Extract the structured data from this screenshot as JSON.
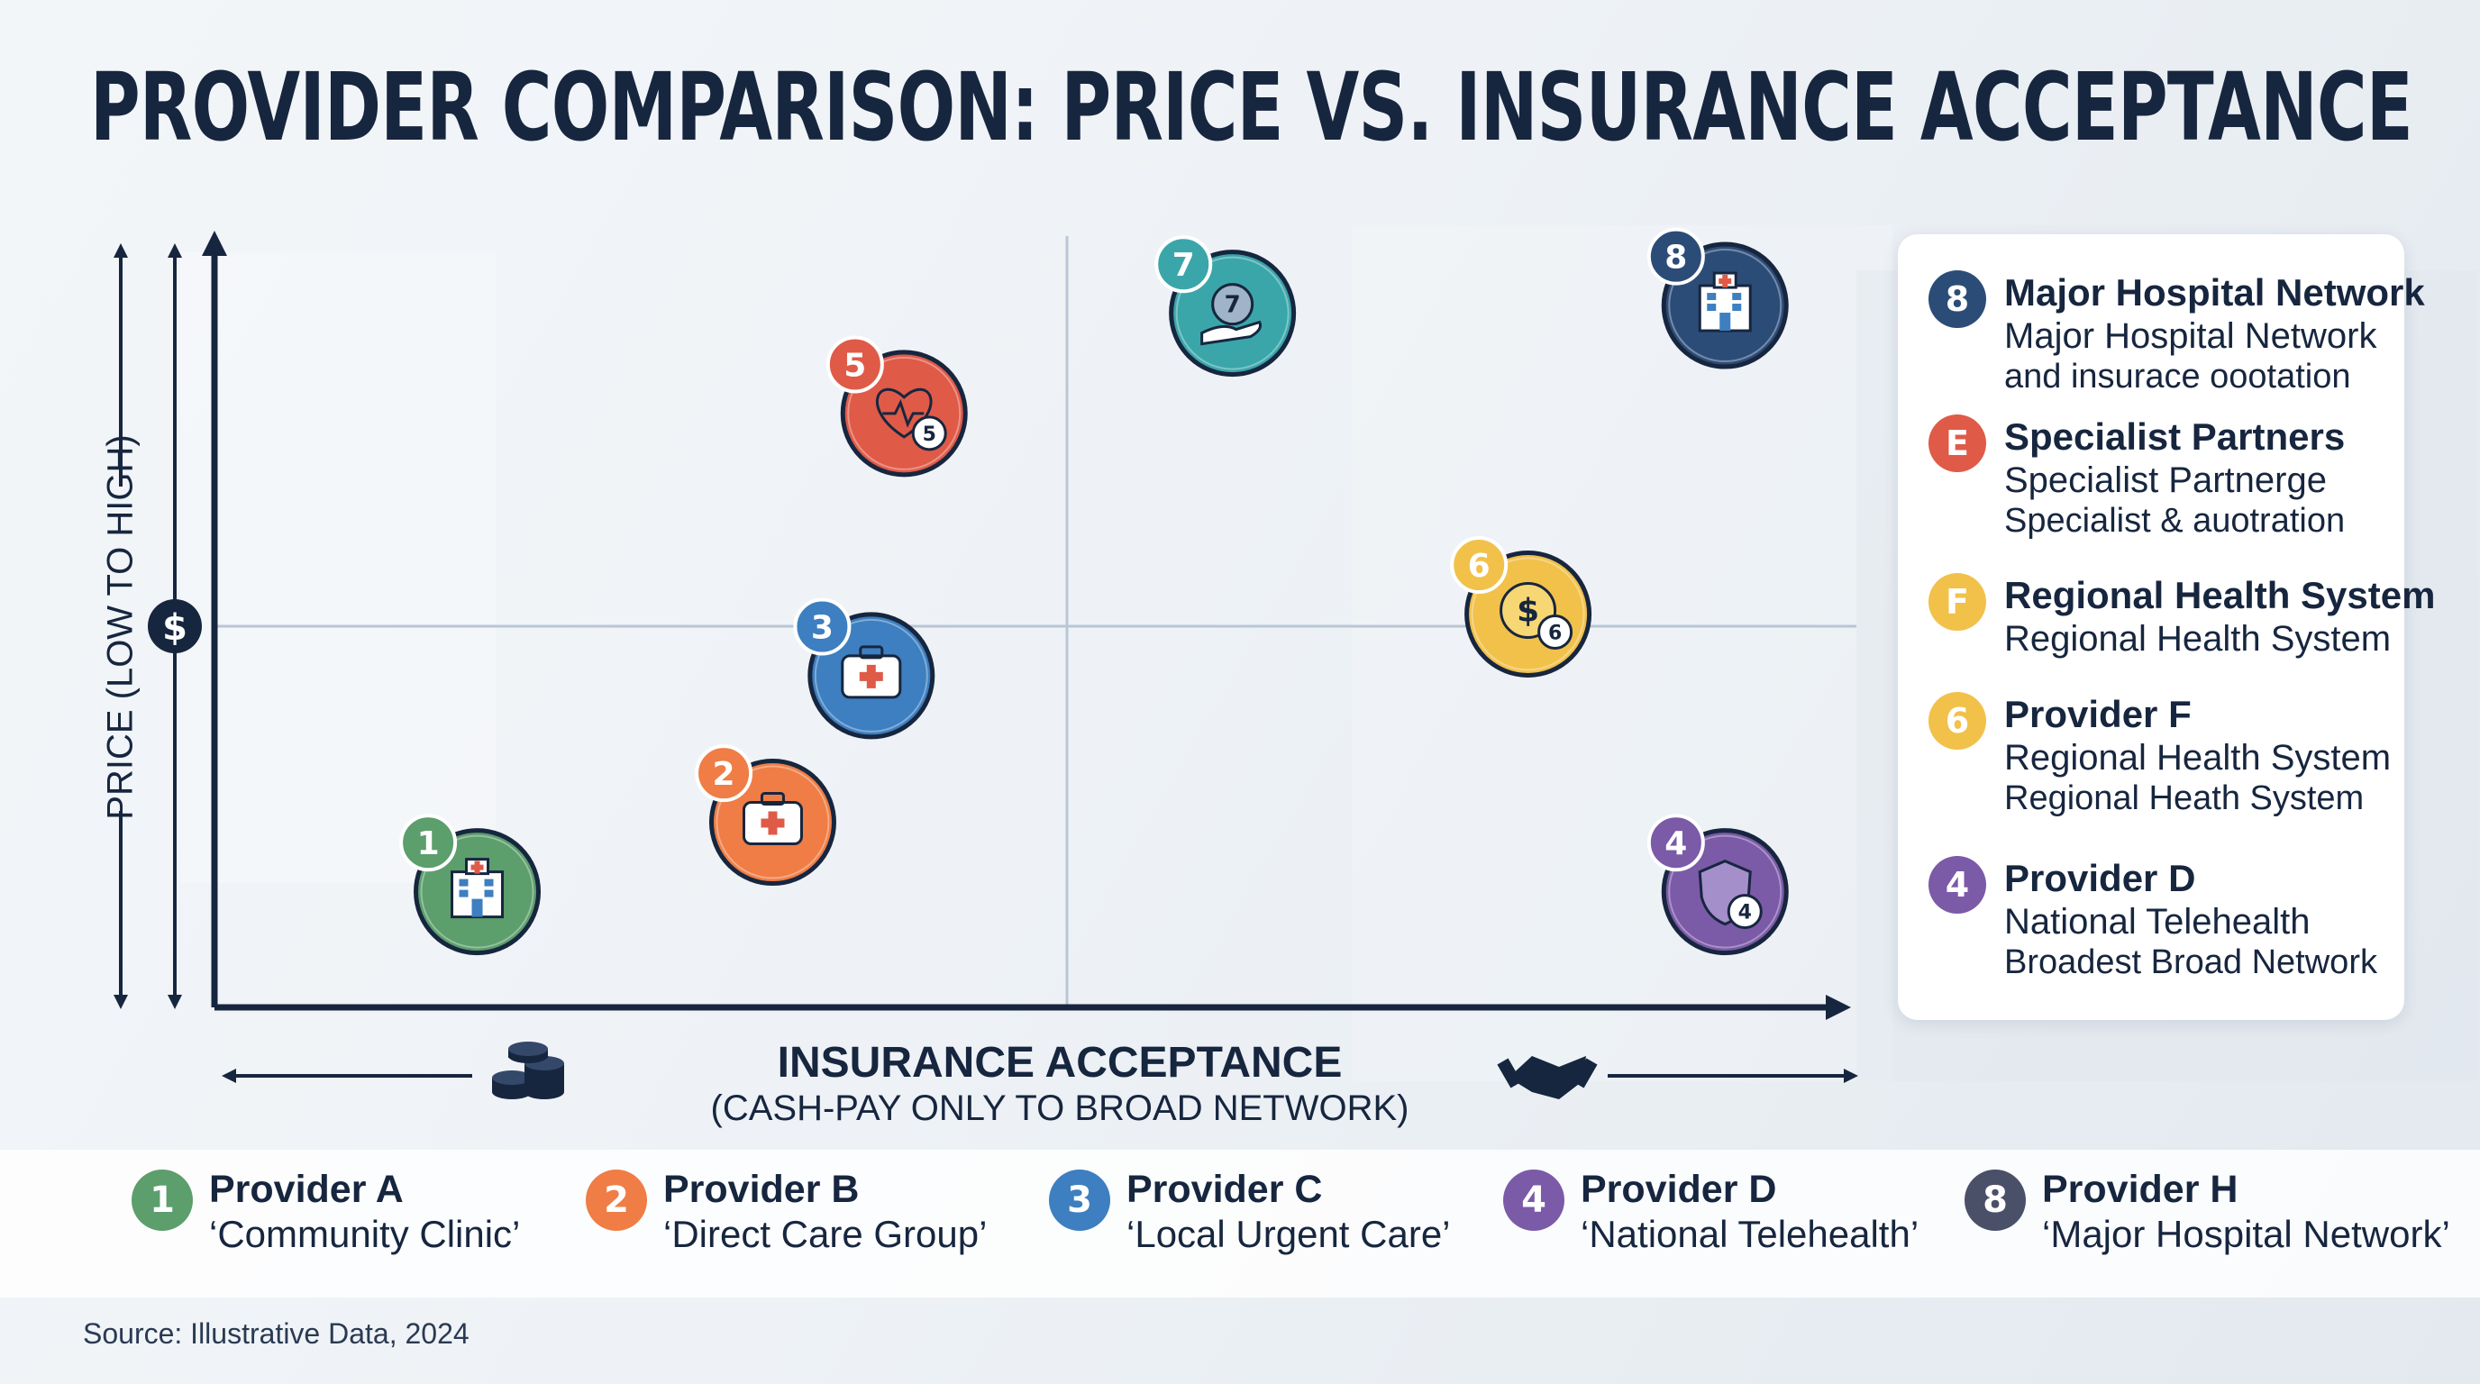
{
  "title": "PROVIDER COMPARISON: PRICE VS. INSURANCE ACCEPTANCE",
  "source": "Source: Illustrative Data, 2024",
  "colors": {
    "green": "#5c9e6c",
    "orange": "#ef7d45",
    "blue": "#3d7fc0",
    "purple": "#7b5aa7",
    "navy": "#2c4c78",
    "red": "#e05a48",
    "teal": "#3aa6aa",
    "yellow": "#f1c14a",
    "slate": "#4a5068"
  },
  "chart_data": {
    "type": "scatter",
    "xlabel": "INSURANCE ACCEPTANCE",
    "xlabel_sub": "(CASH-PAY ONLY TO BROAD NETWORK)",
    "ylabel": "PRICE (LOW TO HIGH)",
    "quadrants": true,
    "points": [
      {
        "label": "1",
        "x": 0.16,
        "y": 0.15,
        "color": "green",
        "icon": "hospital-building-icon"
      },
      {
        "label": "2",
        "x": 0.34,
        "y": 0.24,
        "color": "orange",
        "icon": "first-aid-kit-icon"
      },
      {
        "label": "3",
        "x": 0.4,
        "y": 0.43,
        "color": "blue",
        "icon": "first-aid-kit-icon"
      },
      {
        "label": "5",
        "x": 0.42,
        "y": 0.77,
        "color": "red",
        "icon": "heart-pulse-icon"
      },
      {
        "label": "7",
        "x": 0.62,
        "y": 0.9,
        "color": "teal",
        "icon": "hand-coin-icon"
      },
      {
        "label": "8",
        "x": 0.92,
        "y": 0.91,
        "color": "navy",
        "icon": "hospital-building-icon"
      },
      {
        "label": "6",
        "x": 0.8,
        "y": 0.51,
        "color": "yellow",
        "icon": "dollar-coin-icon"
      },
      {
        "label": "4",
        "x": 0.92,
        "y": 0.15,
        "color": "purple",
        "icon": "shield-icon"
      }
    ]
  },
  "legend": [
    {
      "badge": "8",
      "color": "navy",
      "name": "Major Hospital Network",
      "line2": "Major Hospital Network",
      "line3": "and insurace oootation"
    },
    {
      "badge": "E",
      "color": "red",
      "name": "Specialist Partners",
      "line2": "Specialist Partnerge",
      "line3": "Specialist & auotration"
    },
    {
      "badge": "F",
      "color": "yellow",
      "name": "Regional Health System",
      "line2": "Regional Health System",
      "line3": ""
    },
    {
      "badge": "6",
      "color": "yellow",
      "name": "Provider F",
      "line2": "Regional Health System",
      "line3": "Regional Heath System"
    },
    {
      "badge": "4",
      "color": "purple",
      "name": "Provider D",
      "line2": "National Telehealth",
      "line3": "Broadest Broad Network"
    }
  ],
  "key": [
    {
      "badge": "1",
      "color": "green",
      "name": "Provider A",
      "desc": "‘Community Clinic’"
    },
    {
      "badge": "2",
      "color": "orange",
      "name": "Provider B",
      "desc": "‘Direct Care Group’"
    },
    {
      "badge": "3",
      "color": "blue",
      "name": "Provider C",
      "desc": "‘Local Urgent Care’"
    },
    {
      "badge": "4",
      "color": "purple",
      "name": "Provider D",
      "desc": "‘National Telehealth’"
    },
    {
      "badge": "8",
      "color": "slate",
      "name": "Provider H",
      "desc": "‘Major Hospital Network’"
    }
  ]
}
